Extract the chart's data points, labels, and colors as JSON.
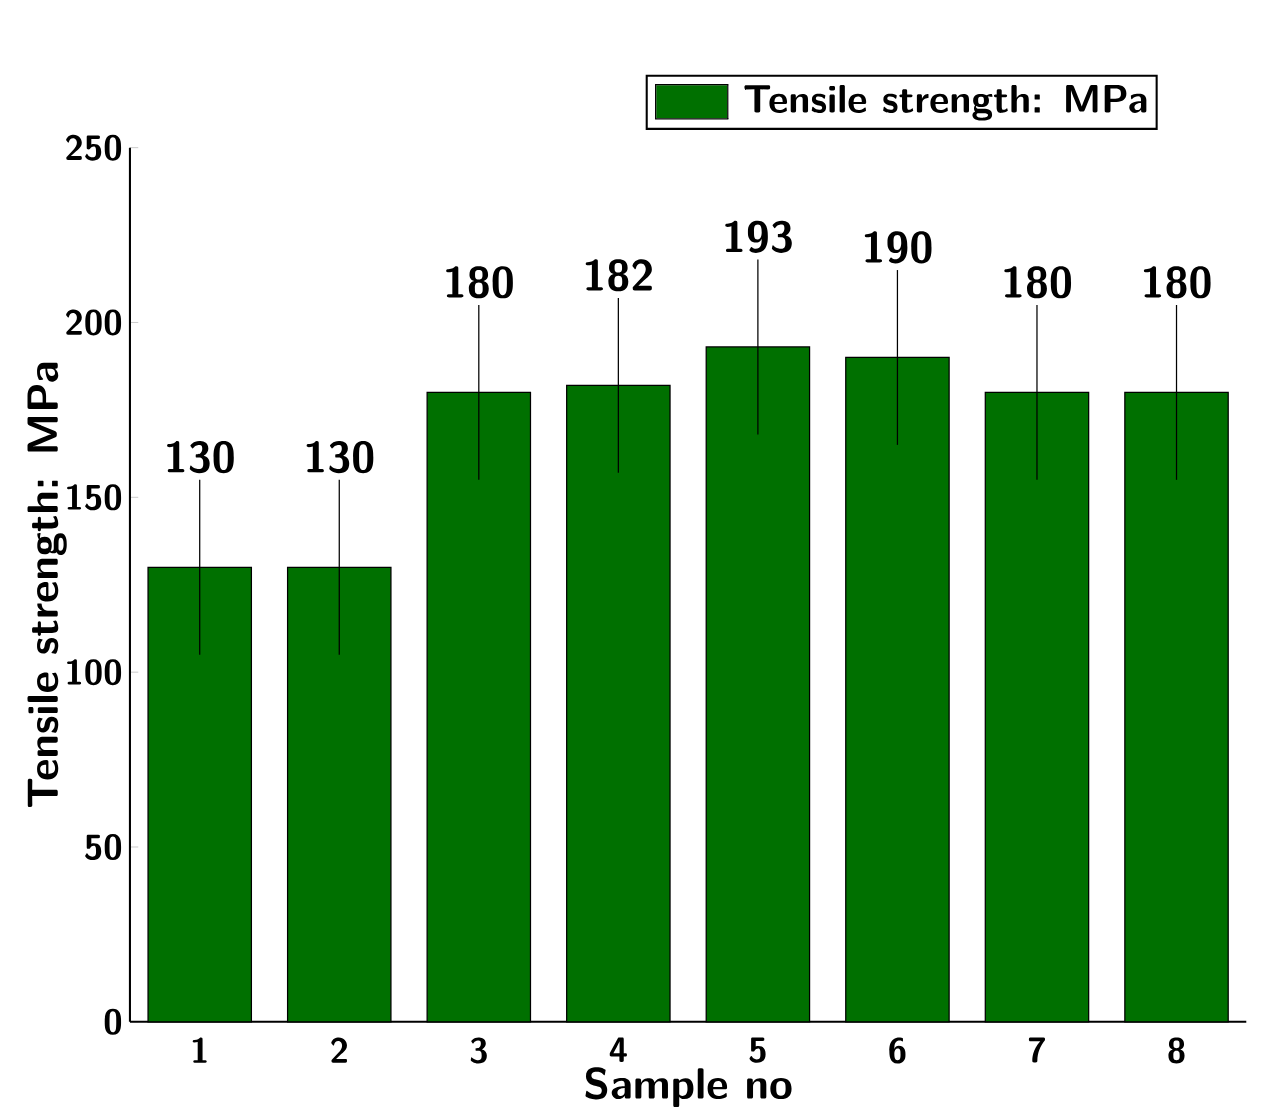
{
  "chart_data": {
    "type": "bar",
    "xlabel": "Sample no",
    "ylabel": "Tensile strength: MPa",
    "categories": [
      "1",
      "2",
      "3",
      "4",
      "5",
      "6",
      "7",
      "8"
    ],
    "series": [
      {
        "name": "Tensile strength: MPa",
        "color": "#007000",
        "values": [
          130,
          130,
          180,
          182,
          193,
          190,
          180,
          180
        ],
        "errors": [
          25,
          25,
          25,
          25,
          25,
          25,
          25,
          25
        ]
      }
    ],
    "data_labels": true,
    "ylim": [
      0,
      250
    ],
    "yticks": [
      0,
      50,
      100,
      150,
      200,
      250
    ],
    "legend": "top right"
  }
}
